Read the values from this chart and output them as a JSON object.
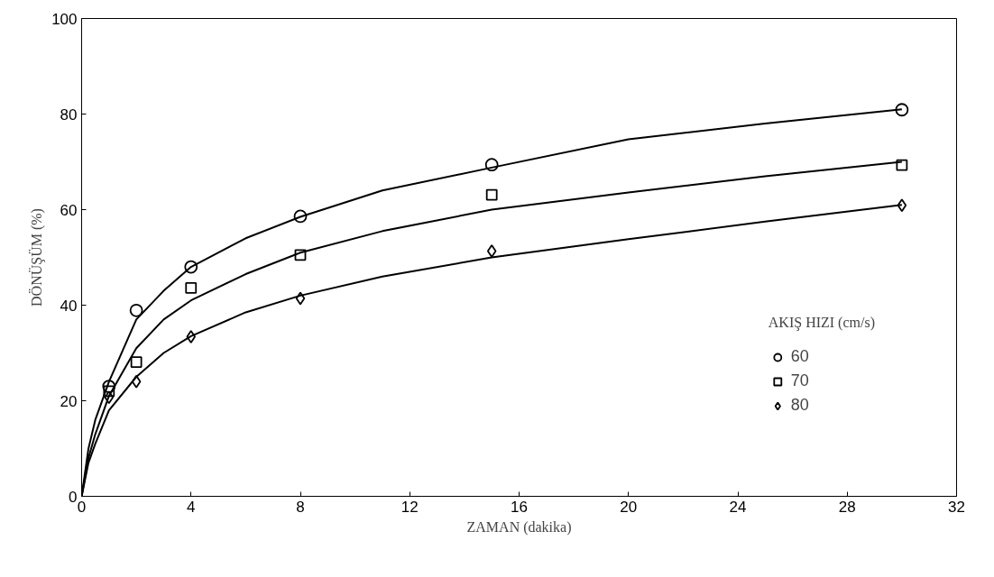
{
  "chart_data": {
    "type": "scatter",
    "xlabel": "ZAMAN (dakika)",
    "ylabel": "DÖNÜŞÜM (%)",
    "legend_title": "AKIŞ HIZI (cm/s)",
    "legend": "bottom right",
    "grid": false,
    "xlim": [
      0,
      32
    ],
    "ylim": [
      0,
      100
    ],
    "xticks": [
      0,
      4,
      8,
      12,
      16,
      20,
      24,
      28,
      32
    ],
    "yticks": [
      0,
      20,
      40,
      60,
      80,
      100
    ],
    "series": [
      {
        "name": "60",
        "color": "#000000",
        "marker": "circle",
        "x": [
          1,
          2,
          4,
          8,
          15,
          30
        ],
        "values": [
          23,
          38.9,
          48,
          58.6,
          69.4,
          80.9
        ]
      },
      {
        "name": "70",
        "color": "#000000",
        "marker": "square",
        "x": [
          1,
          2,
          4,
          8,
          15,
          30
        ],
        "values": [
          22,
          28.1,
          43.6,
          50.5,
          63.1,
          69.3
        ]
      },
      {
        "name": "80",
        "color": "#000000",
        "marker": "diamond",
        "x": [
          1,
          2,
          4,
          8,
          15,
          30
        ],
        "values": [
          20.7,
          24,
          33.4,
          41.4,
          51.3,
          60.9
        ]
      },
      {
        "type": "line",
        "color": "#000000",
        "line_style": "solid",
        "x": [
          0,
          0.25,
          0.5,
          1,
          2,
          3,
          4,
          6,
          8,
          11,
          15,
          20,
          25,
          30
        ],
        "values": [
          0,
          10,
          16,
          24,
          37,
          43,
          48,
          54,
          58.5,
          64,
          68.8,
          74.7,
          78,
          81
        ]
      },
      {
        "type": "line",
        "color": "#000000",
        "line_style": "solid",
        "x": [
          0,
          0.25,
          0.5,
          1,
          2,
          3,
          4,
          6,
          8,
          11,
          15,
          20,
          25,
          30
        ],
        "values": [
          0,
          8,
          13,
          21,
          31,
          37,
          41,
          46.5,
          51,
          55.5,
          60,
          63.6,
          67,
          70
        ]
      },
      {
        "type": "line",
        "color": "#000000",
        "line_style": "solid",
        "x": [
          0,
          0.25,
          0.5,
          1,
          2,
          3,
          4,
          6,
          8,
          11,
          15,
          20,
          25,
          30
        ],
        "values": [
          0,
          7,
          11,
          18,
          25,
          30,
          33.5,
          38.5,
          42,
          46,
          50,
          53.8,
          57.5,
          61
        ]
      }
    ]
  }
}
